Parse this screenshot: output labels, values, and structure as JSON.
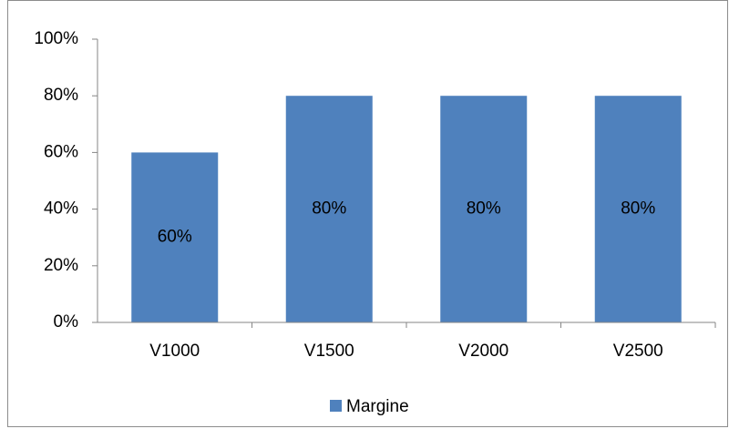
{
  "chart_data": {
    "type": "bar",
    "categories": [
      "V1000",
      "V1500",
      "V2000",
      "V2500"
    ],
    "series": [
      {
        "name": "Margine",
        "color": "#4f81bd",
        "values": [
          60,
          80,
          80,
          80
        ],
        "value_labels": [
          "60%",
          "80%",
          "80%",
          "80%"
        ]
      }
    ],
    "ylim": [
      0,
      100
    ],
    "yticks": [
      {
        "value": 0,
        "label": "0%"
      },
      {
        "value": 20,
        "label": "20%"
      },
      {
        "value": 40,
        "label": "40%"
      },
      {
        "value": 60,
        "label": "60%"
      },
      {
        "value": 80,
        "label": "80%"
      },
      {
        "value": 100,
        "label": "100%"
      }
    ],
    "grid": false,
    "legend": "bottom"
  }
}
